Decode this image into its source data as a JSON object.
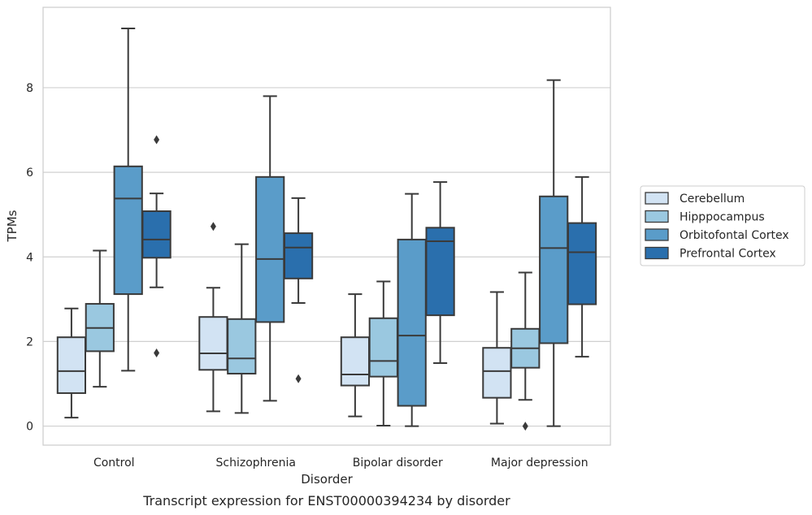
{
  "chart_data": {
    "type": "box",
    "caption": "Transcript expression for ENST00000394234 by disorder",
    "xlabel": "Disorder",
    "ylabel": "TPMs",
    "ylim": [
      -0.45,
      9.9
    ],
    "yticks": [
      0,
      2,
      4,
      6,
      8
    ],
    "grid": "horizontal",
    "legend_position": "right",
    "categories": [
      "Control",
      "Schizophrenia",
      "Bipolar disorder",
      "Major depression"
    ],
    "colors": {
      "Cerebellum": "#d2e3f3",
      "Hipppocampus": "#9ac8e0",
      "Orbitofontal Cortex": "#5a9cc9",
      "Prefrontal Cortex": "#2a6fad",
      "line": "#3a3a3a",
      "grid": "#d0d0d0"
    },
    "series": [
      {
        "name": "Cerebellum",
        "boxes": [
          {
            "whisker_low": 0.2,
            "q1": 0.78,
            "median": 1.3,
            "q3": 2.1,
            "whisker_high": 2.78,
            "outliers": []
          },
          {
            "whisker_low": 0.35,
            "q1": 1.33,
            "median": 1.72,
            "q3": 2.58,
            "whisker_high": 3.27,
            "outliers": [
              4.72
            ]
          },
          {
            "whisker_low": 0.23,
            "q1": 0.96,
            "median": 1.22,
            "q3": 2.1,
            "whisker_high": 3.12,
            "outliers": []
          },
          {
            "whisker_low": 0.06,
            "q1": 0.67,
            "median": 1.3,
            "q3": 1.85,
            "whisker_high": 3.17,
            "outliers": []
          }
        ]
      },
      {
        "name": "Hipppocampus",
        "boxes": [
          {
            "whisker_low": 0.93,
            "q1": 1.77,
            "median": 2.32,
            "q3": 2.89,
            "whisker_high": 4.15,
            "outliers": []
          },
          {
            "whisker_low": 0.31,
            "q1": 1.24,
            "median": 1.6,
            "q3": 2.53,
            "whisker_high": 4.3,
            "outliers": []
          },
          {
            "whisker_low": 0.01,
            "q1": 1.17,
            "median": 1.54,
            "q3": 2.55,
            "whisker_high": 3.42,
            "outliers": []
          },
          {
            "whisker_low": 0.62,
            "q1": 1.38,
            "median": 1.84,
            "q3": 2.3,
            "whisker_high": 3.63,
            "outliers": [
              0.0
            ]
          }
        ]
      },
      {
        "name": "Orbitofontal Cortex",
        "boxes": [
          {
            "whisker_low": 1.31,
            "q1": 3.12,
            "median": 5.38,
            "q3": 6.14,
            "whisker_high": 9.4,
            "outliers": []
          },
          {
            "whisker_low": 0.6,
            "q1": 2.46,
            "median": 3.95,
            "q3": 5.89,
            "whisker_high": 7.8,
            "outliers": []
          },
          {
            "whisker_low": 0.0,
            "q1": 0.48,
            "median": 2.14,
            "q3": 4.41,
            "whisker_high": 5.49,
            "outliers": []
          },
          {
            "whisker_low": 0.0,
            "q1": 1.96,
            "median": 4.21,
            "q3": 5.43,
            "whisker_high": 8.18,
            "outliers": []
          }
        ]
      },
      {
        "name": "Prefrontal Cortex",
        "boxes": [
          {
            "whisker_low": 3.28,
            "q1": 3.98,
            "median": 4.41,
            "q3": 5.08,
            "whisker_high": 5.5,
            "outliers": [
              6.77,
              1.73
            ]
          },
          {
            "whisker_low": 2.91,
            "q1": 3.49,
            "median": 4.22,
            "q3": 4.56,
            "whisker_high": 5.39,
            "outliers": [
              1.12
            ]
          },
          {
            "whisker_low": 1.49,
            "q1": 2.62,
            "median": 4.37,
            "q3": 4.69,
            "whisker_high": 5.77,
            "outliers": []
          },
          {
            "whisker_low": 1.64,
            "q1": 2.88,
            "median": 4.11,
            "q3": 4.8,
            "whisker_high": 5.89,
            "outliers": []
          }
        ]
      }
    ]
  }
}
